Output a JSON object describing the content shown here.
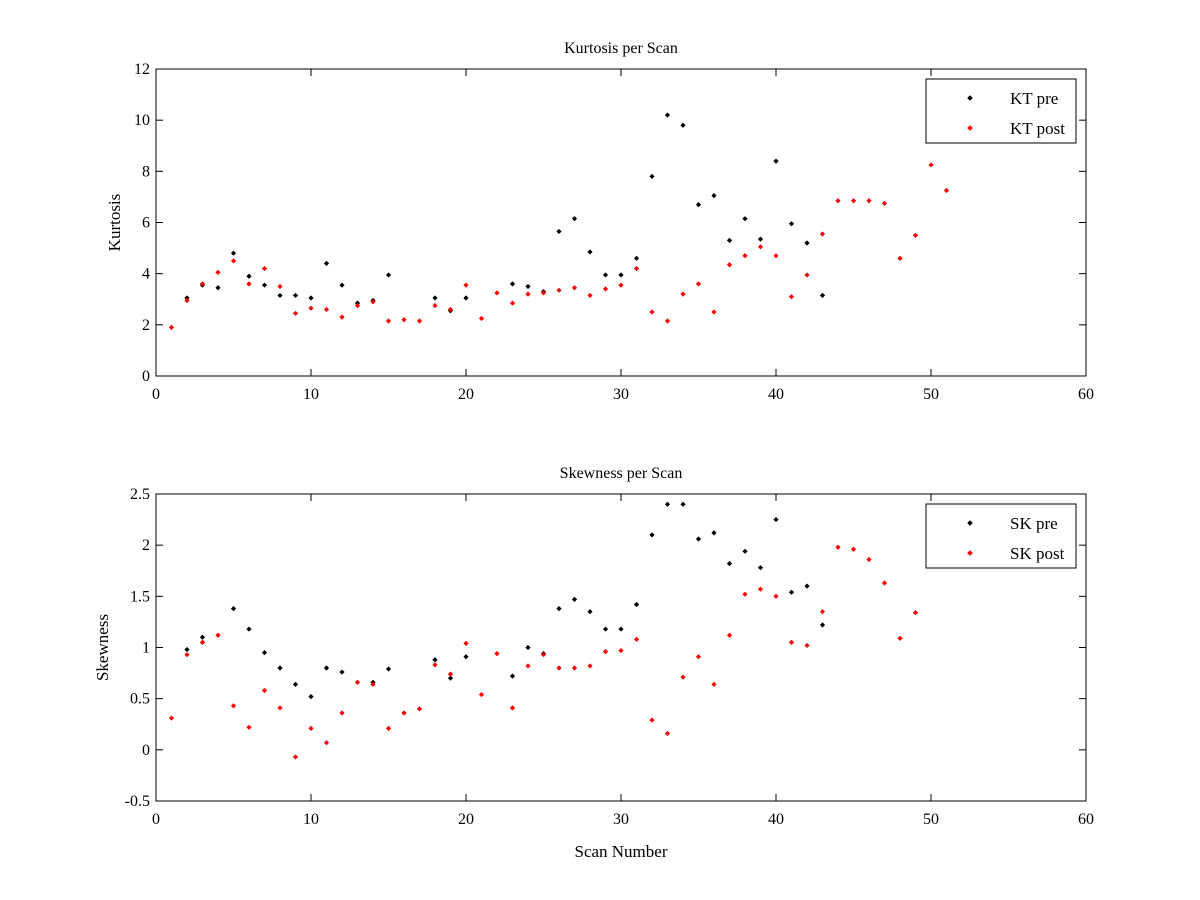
{
  "chart_data": [
    {
      "type": "scatter",
      "title": "Kurtosis per Scan",
      "xlabel": "",
      "ylabel": "Kurtosis",
      "xlim": [
        0,
        60
      ],
      "ylim": [
        0,
        12
      ],
      "xticks": [
        0,
        10,
        20,
        30,
        40,
        50,
        60
      ],
      "yticks": [
        0,
        2,
        4,
        6,
        8,
        10,
        12
      ],
      "grid": false,
      "legend_position": "top-right",
      "series": [
        {
          "name": "KT pre",
          "color": "#000000",
          "x": [
            2,
            3,
            4,
            5,
            6,
            7,
            8,
            9,
            10,
            11,
            12,
            13,
            14,
            15,
            18,
            19,
            20,
            23,
            24,
            25,
            26,
            27,
            28,
            29,
            30,
            31,
            32,
            33,
            34,
            35,
            36,
            37,
            38,
            39,
            40,
            41,
            42,
            43
          ],
          "y": [
            3.05,
            3.55,
            3.45,
            4.8,
            3.9,
            3.55,
            3.15,
            3.15,
            3.05,
            4.4,
            3.55,
            2.85,
            2.95,
            3.95,
            3.05,
            2.55,
            3.05,
            3.6,
            3.5,
            3.3,
            5.65,
            6.15,
            4.85,
            3.95,
            3.95,
            4.6,
            7.8,
            10.2,
            9.8,
            6.7,
            7.05,
            5.3,
            6.15,
            5.35,
            8.4,
            5.95,
            5.2,
            3.15
          ]
        },
        {
          "name": "KT post",
          "color": "#ff0000",
          "x": [
            1,
            2,
            3,
            4,
            5,
            6,
            7,
            8,
            9,
            10,
            11,
            12,
            13,
            14,
            15,
            16,
            17,
            18,
            19,
            20,
            21,
            22,
            23,
            24,
            25,
            26,
            27,
            28,
            29,
            30,
            31,
            32,
            33,
            34,
            35,
            36,
            37,
            38,
            39,
            40,
            41,
            42,
            43,
            44,
            45,
            46,
            47,
            48,
            49,
            50,
            51
          ],
          "y": [
            1.9,
            2.95,
            3.6,
            4.05,
            4.5,
            3.6,
            4.2,
            3.5,
            2.45,
            2.65,
            2.6,
            2.3,
            2.75,
            2.9,
            2.15,
            2.2,
            2.15,
            2.75,
            2.6,
            3.55,
            2.25,
            3.25,
            2.85,
            3.2,
            3.25,
            3.35,
            3.45,
            3.15,
            3.4,
            3.55,
            4.2,
            2.5,
            2.15,
            3.2,
            3.6,
            2.5,
            4.35,
            4.7,
            5.05,
            4.7,
            3.1,
            3.95,
            5.55,
            6.85,
            6.85,
            6.85,
            6.75,
            4.6,
            5.5,
            8.25,
            7.25
          ]
        }
      ]
    },
    {
      "type": "scatter",
      "title": "Skewness per Scan",
      "xlabel": "Scan Number",
      "ylabel": "Skewness",
      "xlim": [
        0,
        60
      ],
      "ylim": [
        -0.5,
        2.5
      ],
      "xticks": [
        0,
        10,
        20,
        30,
        40,
        50,
        60
      ],
      "yticks": [
        -0.5,
        0,
        0.5,
        1,
        1.5,
        2,
        2.5
      ],
      "ytick_labels": [
        "-0.5",
        "0",
        "0.5",
        "1",
        "1.5",
        "2",
        "2.5"
      ],
      "grid": false,
      "legend_position": "top-right",
      "series": [
        {
          "name": "SK pre",
          "color": "#000000",
          "x": [
            2,
            3,
            5,
            6,
            7,
            8,
            9,
            10,
            11,
            12,
            14,
            15,
            18,
            19,
            20,
            23,
            24,
            25,
            26,
            27,
            28,
            29,
            30,
            31,
            32,
            33,
            34,
            35,
            36,
            37,
            38,
            39,
            40,
            41,
            42,
            43
          ],
          "y": [
            0.98,
            1.1,
            1.38,
            1.18,
            0.95,
            0.8,
            0.64,
            0.52,
            0.8,
            0.76,
            0.66,
            0.79,
            0.88,
            0.7,
            0.91,
            0.72,
            1.0,
            0.94,
            1.38,
            1.47,
            1.35,
            1.18,
            1.18,
            1.42,
            2.1,
            2.4,
            2.4,
            2.06,
            2.12,
            1.82,
            1.94,
            1.78,
            2.25,
            1.54,
            1.6,
            1.22
          ]
        },
        {
          "name": "SK post",
          "color": "#ff0000",
          "x": [
            1,
            2,
            3,
            4,
            5,
            6,
            7,
            8,
            9,
            10,
            11,
            12,
            13,
            14,
            15,
            16,
            17,
            18,
            19,
            20,
            21,
            22,
            23,
            24,
            25,
            26,
            27,
            28,
            29,
            30,
            31,
            32,
            33,
            34,
            35,
            36,
            37,
            38,
            39,
            40,
            41,
            42,
            43,
            44,
            45,
            46,
            47,
            48,
            49
          ],
          "y": [
            0.31,
            0.93,
            1.05,
            1.12,
            0.43,
            0.22,
            0.58,
            0.41,
            -0.07,
            0.21,
            0.07,
            0.36,
            0.66,
            0.64,
            0.21,
            0.36,
            0.4,
            0.83,
            0.74,
            1.04,
            0.54,
            0.94,
            0.41,
            0.82,
            0.93,
            0.8,
            0.8,
            0.82,
            0.96,
            0.97,
            1.08,
            0.29,
            0.16,
            0.71,
            0.91,
            0.64,
            1.12,
            1.52,
            1.57,
            1.5,
            1.05,
            1.02,
            1.35,
            1.98,
            1.96,
            1.86,
            1.63,
            1.09,
            1.34
          ]
        }
      ]
    }
  ]
}
